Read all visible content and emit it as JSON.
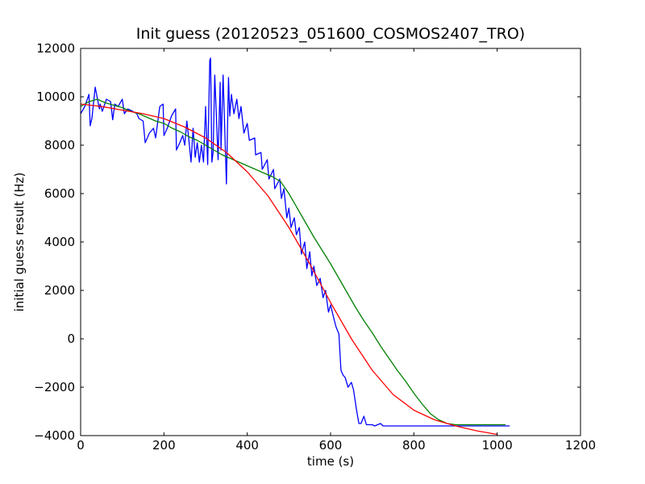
{
  "chart_data": {
    "type": "line",
    "title": "Init guess (20120523_051600_COSMOS2407_TRO)",
    "xlabel": "time (s)",
    "ylabel": "initial guess result (Hz)",
    "xlim": [
      0,
      1200
    ],
    "ylim": [
      -4000,
      12000
    ],
    "xticks": [
      0,
      200,
      400,
      600,
      800,
      1000,
      1200
    ],
    "yticks": [
      -4000,
      -2000,
      0,
      2000,
      4000,
      6000,
      8000,
      10000,
      12000
    ],
    "xtick_labels": [
      "0",
      "200",
      "400",
      "600",
      "800",
      "1000",
      "1200"
    ],
    "ytick_labels": [
      "−4000",
      "−2000",
      "0",
      "2000",
      "4000",
      "6000",
      "8000",
      "10000",
      "12000"
    ],
    "grid": false,
    "series": [
      {
        "color": "#0000ff",
        "x": [
          0,
          10,
          20,
          23,
          27,
          35,
          45,
          47,
          52,
          62,
          72,
          77,
          82,
          90,
          100,
          105,
          113,
          125,
          135,
          140,
          150,
          155,
          165,
          175,
          180,
          190,
          198,
          200,
          208,
          218,
          228,
          230,
          238,
          245,
          250,
          255,
          260,
          265,
          270,
          275,
          280,
          285,
          290,
          295,
          300,
          305,
          310,
          312,
          315,
          318,
          322,
          330,
          335,
          337,
          342,
          350,
          355,
          358,
          362,
          368,
          375,
          380,
          385,
          392,
          400,
          405,
          418,
          420,
          433,
          436,
          448,
          452,
          463,
          466,
          478,
          482,
          488,
          495,
          500,
          505,
          513,
          518,
          525,
          530,
          538,
          543,
          550,
          555,
          560,
          567,
          575,
          582,
          588,
          595,
          600,
          607,
          613,
          620,
          625,
          630,
          635,
          642,
          650,
          655,
          662,
          668,
          673,
          680,
          686,
          693,
          700,
          706,
          713,
          720,
          723,
          726,
          729,
          733,
          740,
          742,
          745,
          753,
          757,
          761,
          770,
          772,
          776,
          795,
          797,
          800,
          815,
          818,
          822,
          835,
          838,
          842,
          848,
          852,
          856,
          860,
          872,
          875,
          878,
          890,
          893,
          897,
          910,
          912,
          915,
          925,
          928,
          932,
          950,
          990,
          1030
        ],
        "y": [
          9300,
          9600,
          10100,
          8800,
          9100,
          10400,
          9500,
          9700,
          9400,
          9900,
          9800,
          9050,
          9700,
          9600,
          9900,
          9300,
          9500,
          9400,
          9300,
          9100,
          9000,
          8100,
          8500,
          8700,
          8300,
          9600,
          9700,
          8400,
          8700,
          9200,
          9500,
          7800,
          8100,
          8400,
          8000,
          9000,
          8200,
          7300,
          8700,
          7500,
          8100,
          7300,
          8000,
          7300,
          9600,
          7200,
          11500,
          11600,
          7300,
          7700,
          10900,
          7400,
          10600,
          7800,
          10900,
          6400,
          10800,
          9200,
          10100,
          9300,
          9900,
          9100,
          9600,
          8500,
          8900,
          8200,
          8300,
          7600,
          7700,
          7000,
          7400,
          6600,
          7000,
          6200,
          6600,
          5800,
          6200,
          5000,
          5400,
          4600,
          5000,
          4300,
          4600,
          3500,
          4000,
          2900,
          3600,
          2600,
          3000,
          2200,
          2500,
          1700,
          2000,
          1100,
          1400,
          900,
          500,
          200,
          -1300,
          -1500,
          -1600,
          -2000,
          -1800,
          -2100,
          -2900,
          -3500,
          -3500,
          -3200,
          -3550,
          -3550,
          -3550,
          -3600,
          -3550,
          -3500,
          -3550,
          -3600,
          -3600,
          -3600,
          -3600,
          -3600,
          -3600,
          -3600,
          -3600,
          -3600,
          -3600,
          -3600,
          -3600,
          -3600,
          -3600,
          -3600,
          -3600,
          -3600,
          -3600,
          -3600,
          -3600,
          -3600,
          -3600,
          -3600,
          -3600,
          -3600,
          -3600,
          -3600,
          -3600,
          -3600,
          -3600,
          -3600,
          -3600,
          -3600,
          -3600,
          -3600,
          -3600,
          -3600,
          -3600,
          -3600,
          -3600
        ]
      },
      {
        "color": "#008000",
        "x": [
          0,
          20,
          40,
          60,
          80,
          100,
          120,
          140,
          160,
          180,
          200,
          220,
          240,
          260,
          280,
          300,
          320,
          340,
          360,
          380,
          400,
          420,
          440,
          460,
          480,
          500,
          520,
          540,
          560,
          580,
          600,
          620,
          640,
          660,
          680,
          700,
          720,
          740,
          760,
          780,
          800,
          820,
          840,
          860,
          880,
          900,
          920,
          940,
          960,
          980,
          1000,
          1020
        ],
        "y": [
          9600,
          9800,
          9900,
          9750,
          9650,
          9550,
          9400,
          9300,
          9150,
          9000,
          8900,
          8700,
          8550,
          8350,
          8200,
          8000,
          7800,
          7600,
          7450,
          7300,
          7150,
          7000,
          6850,
          6700,
          6500,
          6000,
          5400,
          4800,
          4200,
          3650,
          3100,
          2500,
          1900,
          1300,
          750,
          250,
          -300,
          -800,
          -1300,
          -1750,
          -2250,
          -2700,
          -3100,
          -3350,
          -3500,
          -3550,
          -3550,
          -3550,
          -3550,
          -3550,
          -3550,
          -3550
        ]
      },
      {
        "color": "#ff0000",
        "x": [
          0,
          50,
          100,
          150,
          200,
          250,
          300,
          350,
          400,
          450,
          500,
          550,
          600,
          650,
          700,
          750,
          800,
          850,
          900,
          950,
          1000
        ],
        "y": [
          9700,
          9600,
          9450,
          9300,
          9100,
          8750,
          8300,
          7700,
          6900,
          5900,
          4600,
          3100,
          1500,
          0,
          -1300,
          -2300,
          -2950,
          -3350,
          -3600,
          -3800,
          -3950
        ]
      }
    ]
  }
}
